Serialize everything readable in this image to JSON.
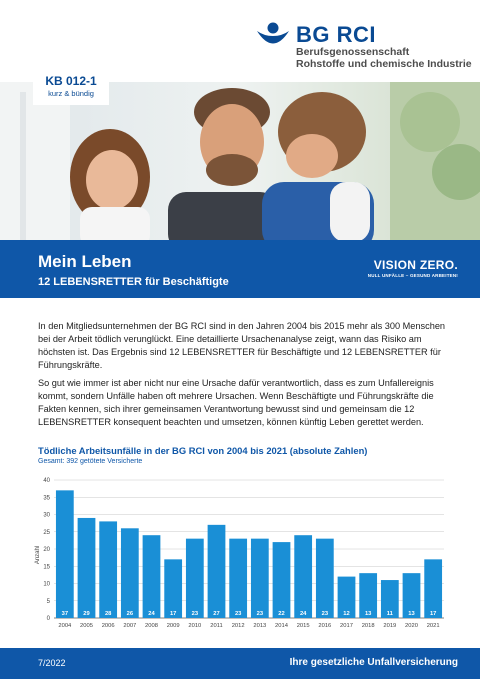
{
  "header": {
    "brand_name": "BG RCI",
    "brand_sub1": "Berufsgenossenschaft",
    "brand_sub2": "Rohstoffe und chemische Industrie"
  },
  "badge": {
    "code": "KB 012-1",
    "sub": "kurz & bündig"
  },
  "banner": {
    "title": "Mein Leben",
    "subtitle": "12 LEBENSRETTER für Beschäftigte",
    "vision_main": "VISION ZERO.",
    "vision_sub": "NULL UNFÄLLE – GESUND ARBEITEN!"
  },
  "body": {
    "p1": "In den Mitgliedsunternehmen der BG RCI sind in den Jahren 2004 bis 2015 mehr als 300 Menschen bei der Arbeit tödlich verunglückt. Eine detaillierte Ursachenanalyse zeigt, wann das Risiko am höchsten ist. Das Ergebnis sind 12 LEBENSRETTER für Beschäftigte und 12 LEBENSRETTER für Führungskräfte.",
    "p2": "So gut wie immer ist aber nicht nur eine Ursache dafür verantwortlich, dass es zum Unfallereignis kommt, sondern Unfälle haben oft mehrere Ursachen. Wenn Beschäftigte und Führungskräfte die Fakten kennen, sich ihrer gemeinsamen Verantwortung bewusst sind und gemeinsam die 12 LEBENSRETTER konsequent beachten und umsetzen, können künftig Leben gerettet werden."
  },
  "chart_data": {
    "type": "bar",
    "title": "Tödliche Arbeitsunfälle in der BG RCI von 2004 bis 2021 (absolute Zahlen)",
    "subtitle": "Gesamt: 392 getötete Versicherte",
    "ylabel": "Anzahl",
    "xlabel": "",
    "ylim": [
      0,
      40
    ],
    "yticks": [
      0,
      5,
      10,
      15,
      20,
      25,
      30,
      35,
      40
    ],
    "categories": [
      "2004",
      "2005",
      "2006",
      "2007",
      "2008",
      "2009",
      "2010",
      "2011",
      "2012",
      "2013",
      "2014",
      "2015",
      "2016",
      "2017",
      "2018",
      "2019",
      "2020",
      "2021"
    ],
    "values": [
      37,
      29,
      28,
      26,
      24,
      17,
      23,
      27,
      23,
      23,
      22,
      24,
      23,
      12,
      13,
      11,
      13,
      17
    ],
    "bar_color": "#1a8fd6",
    "grid": true,
    "data_labels": "inside-bottom"
  },
  "footer": {
    "date": "7/2022",
    "tagline": "Ihre gesetzliche Unfallversicherung"
  },
  "colors": {
    "brand_blue": "#0f57a8",
    "logo_blue": "#0a4a93",
    "bar": "#1a8fd6"
  }
}
